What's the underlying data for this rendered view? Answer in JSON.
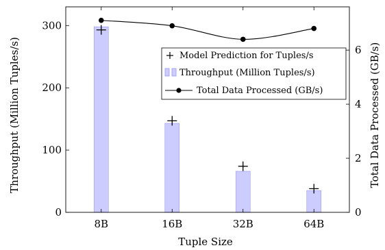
{
  "chart_data": {
    "type": "bar",
    "categories": [
      "8B",
      "16B",
      "32B",
      "64B"
    ],
    "xlabel": "Tuple Size",
    "ylabel": "Throughput (Million Tuples/s)",
    "y2label": "Total Data Processed (GB/s)",
    "ylim": [
      0,
      330
    ],
    "y2lim": [
      0,
      7.6
    ],
    "yticks": [
      "0",
      "100",
      "200",
      "300"
    ],
    "y2ticks": [
      "0",
      "2",
      "4",
      "6"
    ],
    "legend_position": "right",
    "series": [
      {
        "name": "Throughput (Million Tuples/s)",
        "type": "bar",
        "axis": "left",
        "color": "#ccccff",
        "edge_color": "#9999ee",
        "values": [
          298,
          143,
          66,
          35
        ]
      },
      {
        "name": "Model Prediction for Tuples/s",
        "type": "scatter",
        "marker": "plus",
        "axis": "left",
        "color": "#000000",
        "values": [
          293,
          147,
          74,
          38
        ]
      },
      {
        "name": "Total Data Processed (GB/s)",
        "type": "line",
        "marker": "circle",
        "axis": "right",
        "color": "#000000",
        "values": [
          7.1,
          6.9,
          6.4,
          6.8
        ]
      }
    ]
  }
}
